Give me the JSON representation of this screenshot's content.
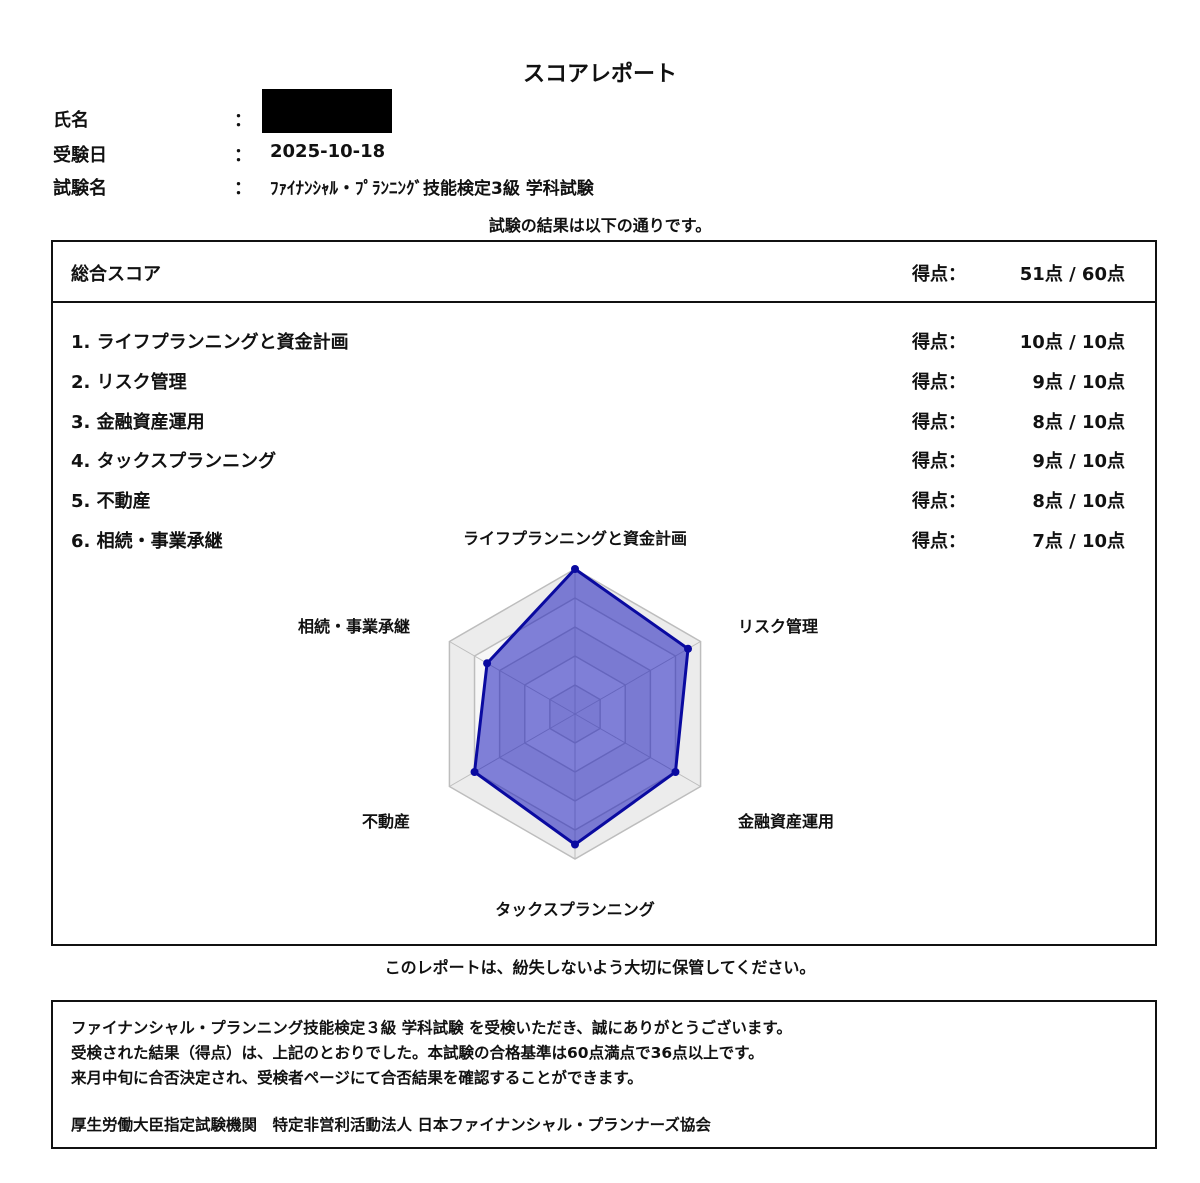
{
  "title": "スコアレポート",
  "info": [
    {
      "label": "氏名",
      "value": ""
    },
    {
      "label": "受験日",
      "value": "2025-10-18"
    },
    {
      "label": "試験名",
      "value": "ﾌｧｲﾅﾝｼｬﾙ・ﾌﾟﾗﾝﾆﾝｸﾞ技能検定3級 学科試験"
    }
  ],
  "colon": "：",
  "result_intro": "試験の結果は以下の通りです。",
  "total": {
    "label": "総合スコア",
    "score_label": "得点：",
    "score": "51点 / 60点"
  },
  "sections": [
    {
      "label": "1. ライフプランニングと資金計画",
      "score_label": "得点：",
      "score": "10点 / 10点"
    },
    {
      "label": "2. リスク管理",
      "score_label": "得点：",
      "score": "9点 / 10点"
    },
    {
      "label": "3. 金融資産運用",
      "score_label": "得点：",
      "score": "8点 / 10点"
    },
    {
      "label": "4. タックスプランニング",
      "score_label": "得点：",
      "score": "9点 / 10点"
    },
    {
      "label": "5. 不動産",
      "score_label": "得点：",
      "score": "8点 / 10点"
    },
    {
      "label": "6. 相続・事業承継",
      "score_label": "得点：",
      "score": "7点 / 10点"
    }
  ],
  "chart_data": {
    "type": "radar",
    "categories": [
      "ライフプランニングと資金計画",
      "リスク管理",
      "金融資産運用",
      "タックスプランニング",
      "不動産",
      "相続・事業承継"
    ],
    "values": [
      10,
      9,
      8,
      9,
      8,
      7
    ],
    "range": [
      0,
      10
    ],
    "rings": [
      2,
      4,
      6,
      8,
      10
    ],
    "colors": {
      "line": "#0a0aa0",
      "fill": "rgba(30,30,190,0.55)",
      "grid": "#bdbdbd",
      "grid_fill": "#ececec"
    }
  },
  "keep_note": "このレポートは、紛失しないよう大切に保管してください。",
  "footer": {
    "lines": [
      "ファイナンシャル・プランニング技能検定３級 学科試験 を受検いただき、誠にありがとうございます。",
      "受検された結果（得点）は、上記のとおりでした。本試験の合格基準は60点満点で36点以上です。",
      "来月中旬に合否決定され、受検者ページにて合否結果を確認することができます。"
    ],
    "org": "厚生労働大臣指定試験機関　特定非営利活動法人 日本ファイナンシャル・プランナーズ協会"
  }
}
